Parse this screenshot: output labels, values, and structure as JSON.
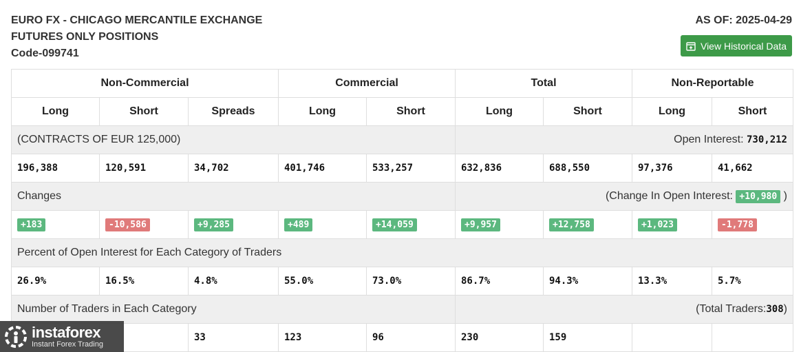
{
  "header": {
    "title_line1": "EURO FX - CHICAGO MERCANTILE EXCHANGE",
    "title_line2": "FUTURES ONLY POSITIONS",
    "code": "Code-099741",
    "as_of": "AS OF: 2025-04-29",
    "history_button": "View Historical Data"
  },
  "groups": [
    "Non-Commercial",
    "Commercial",
    "Total",
    "Non-Reportable"
  ],
  "columns": [
    "Long",
    "Short",
    "Spreads",
    "Long",
    "Short",
    "Long",
    "Short",
    "Long",
    "Short"
  ],
  "contracts": {
    "label": "(CONTRACTS OF EUR 125,000)",
    "open_interest_label": "Open Interest:",
    "open_interest_value": "730,212",
    "values": [
      "196,388",
      "120,591",
      "34,702",
      "401,746",
      "533,257",
      "632,836",
      "688,550",
      "97,376",
      "41,662"
    ]
  },
  "changes": {
    "label": "Changes",
    "change_oi_prefix": "(Change In Open Interest:",
    "change_oi_value": "+10,980",
    "change_oi_suffix": ")",
    "values": [
      "+183",
      "-10,586",
      "+9,285",
      "+489",
      "+14,059",
      "+9,957",
      "+12,758",
      "+1,023",
      "-1,778"
    ]
  },
  "percent": {
    "label": "Percent of Open Interest for Each Category of Traders",
    "values": [
      "26.9%",
      "16.5%",
      "4.8%",
      "55.0%",
      "73.0%",
      "86.7%",
      "94.3%",
      "13.3%",
      "5.7%"
    ]
  },
  "traders": {
    "label": "Number of Traders in Each Category",
    "total_prefix": "(Total Traders:",
    "total_value": "308",
    "total_suffix": ")",
    "values": [
      "",
      "",
      "33",
      "123",
      "96",
      "230",
      "159",
      "",
      ""
    ]
  },
  "logo": {
    "brand": "instaforex",
    "tagline": "Instant Forex Trading"
  },
  "colors": {
    "button_green": "#3d9a48",
    "positive": "#5cb87f",
    "negative": "#e07a7a"
  }
}
